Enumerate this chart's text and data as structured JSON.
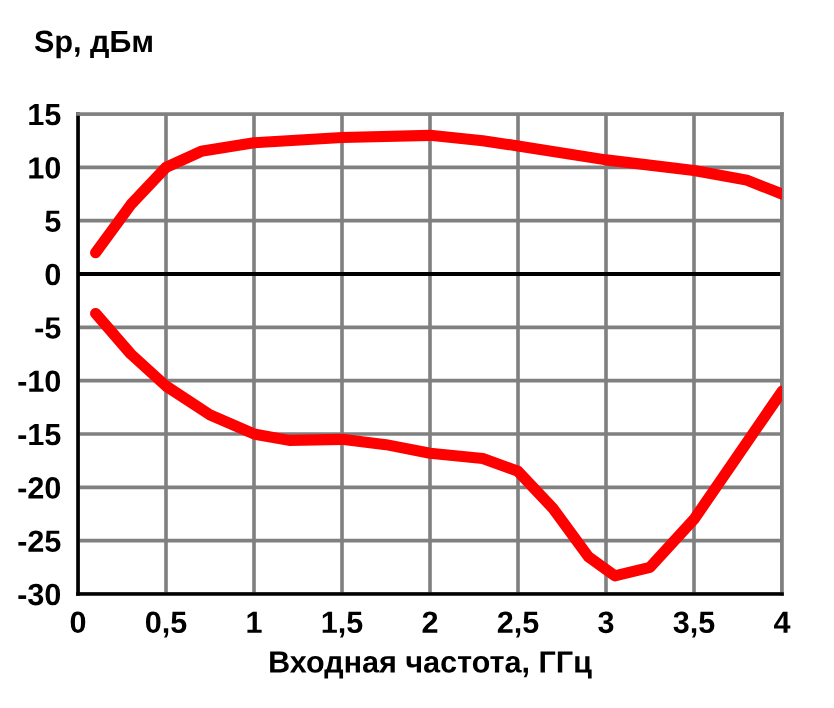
{
  "chart_data": {
    "type": "line",
    "ylabel": "Sp, дБм",
    "xlabel": "Входная частота, ГГц",
    "xlim": [
      0,
      4
    ],
    "ylim": [
      -30,
      15
    ],
    "xticks": [
      0,
      {
        "value": 0.5,
        "label": "0,5"
      },
      1,
      {
        "value": 1.5,
        "label": "1,5"
      },
      2,
      {
        "value": 2.5,
        "label": "2,5"
      },
      3,
      {
        "value": 3.5,
        "label": "3,5"
      },
      4
    ],
    "yticks": [
      -30,
      -25,
      -20,
      -15,
      -10,
      -5,
      0,
      5,
      10,
      15
    ],
    "grid": true,
    "marker": "none",
    "line_style": "solid",
    "legend": false,
    "ref_lines": [
      {
        "axis": "y",
        "value": 0,
        "color": "#000000"
      }
    ],
    "series": [
      {
        "color": "#ff0000",
        "x": [
          0.1,
          0.3,
          0.5,
          0.7,
          1,
          1.5,
          2,
          2.3,
          2.5,
          3,
          3.5,
          3.8,
          4
        ],
        "values": [
          2,
          6.5,
          10,
          11.5,
          12.3,
          12.8,
          13,
          12.5,
          12,
          10.7,
          9.7,
          8.8,
          7.5
        ]
      },
      {
        "color": "#ff0000",
        "x": [
          0.1,
          0.3,
          0.5,
          0.75,
          1,
          1.2,
          1.5,
          1.75,
          2,
          2.3,
          2.5,
          2.7,
          2.9,
          3.05,
          3.25,
          3.5,
          3.75,
          4
        ],
        "values": [
          -3.7,
          -7.5,
          -10.5,
          -13.2,
          -15,
          -15.6,
          -15.5,
          -16,
          -16.8,
          -17.3,
          -18.5,
          -22,
          -26.5,
          -28.3,
          -27.5,
          -23,
          -17,
          -11
        ]
      }
    ]
  }
}
